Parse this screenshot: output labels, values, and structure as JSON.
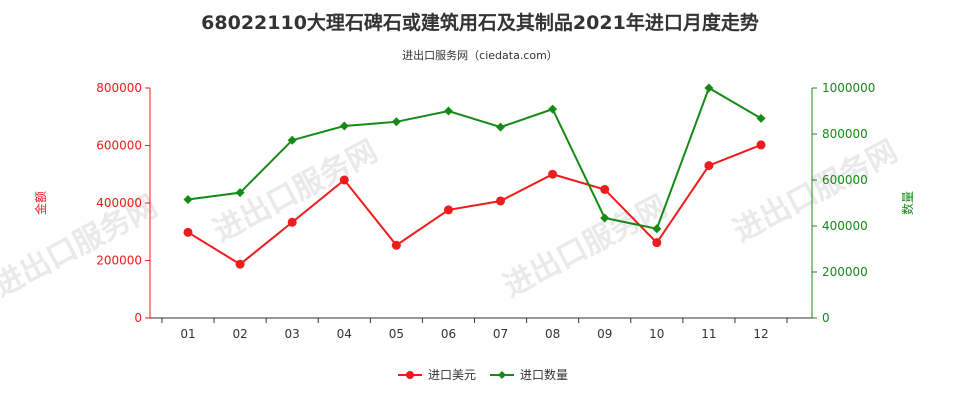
{
  "chart_data": {
    "type": "line",
    "title": "68022110大理石碑石或建筑用石及其制品2021年进口月度走势",
    "subtitle": "进出口服务网（ciedata.com）",
    "watermark": "进出口服务网",
    "categories": [
      "01",
      "02",
      "03",
      "04",
      "05",
      "06",
      "07",
      "08",
      "09",
      "10",
      "11",
      "12"
    ],
    "series": [
      {
        "name": "进口美元",
        "axis": "left",
        "color": "#ee1c1c",
        "marker": "circle",
        "values": [
          298000,
          187000,
          333000,
          480000,
          253000,
          376000,
          407000,
          500000,
          447000,
          262000,
          530000,
          602000
        ]
      },
      {
        "name": "进口数量",
        "axis": "right",
        "color": "#168a16",
        "marker": "diamond",
        "values": [
          515000,
          545000,
          773000,
          835000,
          853000,
          900000,
          830000,
          908000,
          435000,
          388000,
          1000000,
          868000
        ]
      }
    ],
    "y_left": {
      "label": "金额",
      "color": "#ee1c1c",
      "ylim": [
        0,
        800000
      ],
      "ticks": [
        "0",
        "200000",
        "400000",
        "600000",
        "800000"
      ]
    },
    "y_right": {
      "label": "数量",
      "color": "#168a16",
      "ylim": [
        0,
        1000000
      ],
      "ticks": [
        "0",
        "200000",
        "400000",
        "600000",
        "800000",
        "1000000"
      ]
    },
    "grid": false,
    "legend_position": "bottom-center"
  }
}
